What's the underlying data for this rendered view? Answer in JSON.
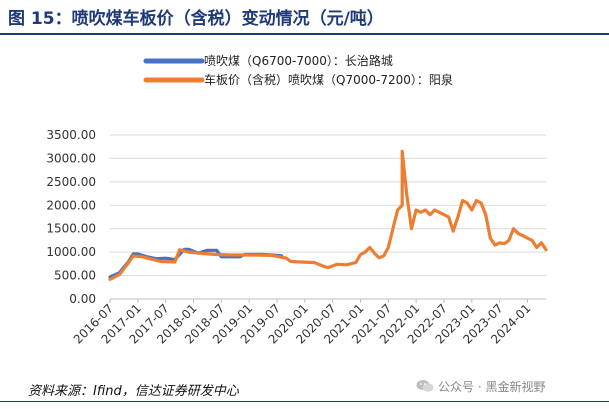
{
  "header": {
    "title": "图 15：喷吹煤车板价（含税）变动情况（元/吨）"
  },
  "footer": {
    "source": "资料来源：Ifind，信达证券研发中心",
    "watermark": "公众号 · 黑金新视野"
  },
  "chart_data": {
    "type": "line",
    "title": "",
    "xlabel": "",
    "ylabel": "",
    "ylim": [
      0,
      3500
    ],
    "y_ticks": [
      "0.00",
      "500.00",
      "1000.00",
      "1500.00",
      "2000.00",
      "2500.00",
      "3000.00",
      "3500.00"
    ],
    "x_ticks": [
      "2016-07",
      "2017-01",
      "2017-07",
      "2018-01",
      "2018-07",
      "2019-01",
      "2019-07",
      "2020-01",
      "2020-07",
      "2021-01",
      "2021-07",
      "2022-01",
      "2022-07",
      "2023-01",
      "2023-07",
      "2024-01"
    ],
    "grid": "horizontal",
    "legend_position": "top",
    "series": [
      {
        "name": "喷吹煤（Q6700-7000）：长治路城",
        "color": "#4472C4",
        "points": [
          [
            "2016-07",
            470
          ],
          [
            "2016-09",
            560
          ],
          [
            "2016-11",
            800
          ],
          [
            "2016-12",
            960
          ],
          [
            "2017-01",
            960
          ],
          [
            "2017-03",
            900
          ],
          [
            "2017-05",
            860
          ],
          [
            "2017-07",
            870
          ],
          [
            "2017-09",
            840
          ],
          [
            "2017-11",
            1060
          ],
          [
            "2017-12",
            1060
          ],
          [
            "2018-02",
            980
          ],
          [
            "2018-04",
            1040
          ],
          [
            "2018-06",
            1040
          ],
          [
            "2018-07",
            900
          ],
          [
            "2018-09",
            900
          ],
          [
            "2018-11",
            900
          ],
          [
            "2018-12",
            950
          ],
          [
            "2019-02",
            950
          ],
          [
            "2019-04",
            950
          ],
          [
            "2019-06",
            940
          ],
          [
            "2019-08",
            920
          ]
        ]
      },
      {
        "name": "车板价（含税）喷吹煤（Q7000-7200）：阳泉",
        "color": "#ED7D31",
        "points": [
          [
            "2016-07",
            420
          ],
          [
            "2016-09",
            520
          ],
          [
            "2016-11",
            780
          ],
          [
            "2016-12",
            920
          ],
          [
            "2017-02",
            900
          ],
          [
            "2017-04",
            850
          ],
          [
            "2017-06",
            800
          ],
          [
            "2017-09",
            790
          ],
          [
            "2017-10",
            1050
          ],
          [
            "2017-12",
            1000
          ],
          [
            "2018-03",
            970
          ],
          [
            "2018-06",
            950
          ],
          [
            "2018-09",
            940
          ],
          [
            "2019-01",
            940
          ],
          [
            "2019-06",
            930
          ],
          [
            "2019-09",
            870
          ],
          [
            "2019-10",
            800
          ],
          [
            "2019-12",
            790
          ],
          [
            "2020-03",
            780
          ],
          [
            "2020-05",
            700
          ],
          [
            "2020-06",
            670
          ],
          [
            "2020-08",
            740
          ],
          [
            "2020-10",
            730
          ],
          [
            "2020-12",
            780
          ],
          [
            "2021-01",
            950
          ],
          [
            "2021-02",
            1000
          ],
          [
            "2021-03",
            1100
          ],
          [
            "2021-04",
            980
          ],
          [
            "2021-05",
            880
          ],
          [
            "2021-06",
            920
          ],
          [
            "2021-07",
            1100
          ],
          [
            "2021-08",
            1500
          ],
          [
            "2021-09",
            1900
          ],
          [
            "2021-10",
            2000
          ],
          [
            "2021-10",
            3150
          ],
          [
            "2021-11",
            2200
          ],
          [
            "2021-12",
            1500
          ],
          [
            "2022-01",
            1900
          ],
          [
            "2022-02",
            1850
          ],
          [
            "2022-03",
            1900
          ],
          [
            "2022-04",
            1800
          ],
          [
            "2022-05",
            1900
          ],
          [
            "2022-06",
            1850
          ],
          [
            "2022-08",
            1750
          ],
          [
            "2022-09",
            1450
          ],
          [
            "2022-10",
            1750
          ],
          [
            "2022-11",
            2100
          ],
          [
            "2022-12",
            2050
          ],
          [
            "2023-01",
            1900
          ],
          [
            "2023-02",
            2100
          ],
          [
            "2023-03",
            2050
          ],
          [
            "2023-04",
            1800
          ],
          [
            "2023-05",
            1300
          ],
          [
            "2023-06",
            1150
          ],
          [
            "2023-07",
            1200
          ],
          [
            "2023-08",
            1180
          ],
          [
            "2023-09",
            1250
          ],
          [
            "2023-10",
            1500
          ],
          [
            "2023-11",
            1400
          ],
          [
            "2023-12",
            1350
          ],
          [
            "2024-01",
            1300
          ],
          [
            "2024-02",
            1250
          ],
          [
            "2024-03",
            1100
          ],
          [
            "2024-04",
            1200
          ],
          [
            "2024-05",
            1050
          ]
        ]
      }
    ]
  }
}
